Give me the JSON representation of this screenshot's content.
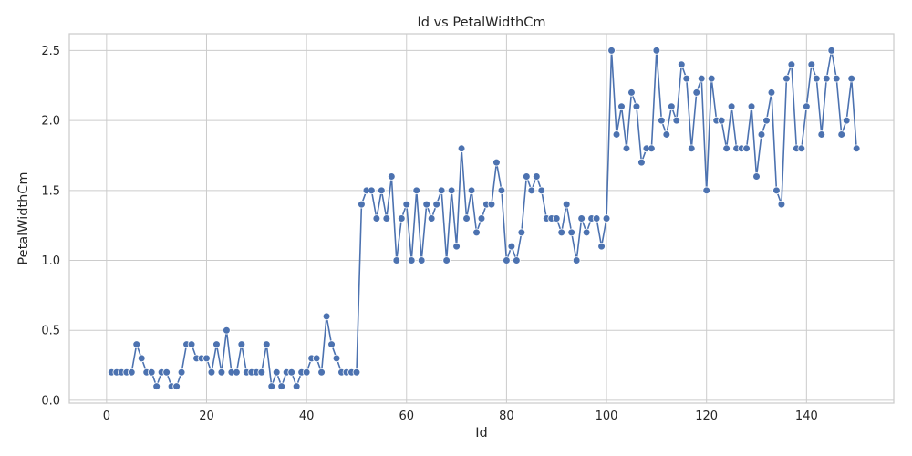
{
  "chart_data": {
    "type": "line",
    "title": "Id vs PetalWidthCm",
    "xlabel": "Id",
    "ylabel": "PetalWidthCm",
    "xlim": [
      -7.45,
      157.45
    ],
    "ylim": [
      -0.02,
      2.62
    ],
    "xticks": [
      0,
      20,
      40,
      60,
      80,
      100,
      120,
      140
    ],
    "yticks": [
      0.0,
      0.5,
      1.0,
      1.5,
      2.0,
      2.5
    ],
    "ytick_labels": [
      "0.0",
      "0.5",
      "1.0",
      "1.5",
      "2.0",
      "2.5"
    ],
    "grid": true,
    "color": "#4c72b0",
    "series": [
      {
        "x": [
          1,
          2,
          3,
          4,
          5,
          6,
          7,
          8,
          9,
          10,
          11,
          12,
          13,
          14,
          15,
          16,
          17,
          18,
          19,
          20,
          21,
          22,
          23,
          24,
          25,
          26,
          27,
          28,
          29,
          30,
          31,
          32,
          33,
          34,
          35,
          36,
          37,
          38,
          39,
          40,
          41,
          42,
          43,
          44,
          45,
          46,
          47,
          48,
          49,
          50,
          51,
          52,
          53,
          54,
          55,
          56,
          57,
          58,
          59,
          60,
          61,
          62,
          63,
          64,
          65,
          66,
          67,
          68,
          69,
          70,
          71,
          72,
          73,
          74,
          75,
          76,
          77,
          78,
          79,
          80,
          81,
          82,
          83,
          84,
          85,
          86,
          87,
          88,
          89,
          90,
          91,
          92,
          93,
          94,
          95,
          96,
          97,
          98,
          99,
          100,
          101,
          102,
          103,
          104,
          105,
          106,
          107,
          108,
          109,
          110,
          111,
          112,
          113,
          114,
          115,
          116,
          117,
          118,
          119,
          120,
          121,
          122,
          123,
          124,
          125,
          126,
          127,
          128,
          129,
          130,
          131,
          132,
          133,
          134,
          135,
          136,
          137,
          138,
          139,
          140,
          141,
          142,
          143,
          144,
          145,
          146,
          147,
          148,
          149,
          150
        ],
        "y": [
          0.2,
          0.2,
          0.2,
          0.2,
          0.2,
          0.4,
          0.3,
          0.2,
          0.2,
          0.1,
          0.2,
          0.2,
          0.1,
          0.1,
          0.2,
          0.4,
          0.4,
          0.3,
          0.3,
          0.3,
          0.2,
          0.4,
          0.2,
          0.5,
          0.2,
          0.2,
          0.4,
          0.2,
          0.2,
          0.2,
          0.2,
          0.4,
          0.1,
          0.2,
          0.1,
          0.2,
          0.2,
          0.1,
          0.2,
          0.2,
          0.3,
          0.3,
          0.2,
          0.6,
          0.4,
          0.3,
          0.2,
          0.2,
          0.2,
          0.2,
          1.4,
          1.5,
          1.5,
          1.3,
          1.5,
          1.3,
          1.6,
          1.0,
          1.3,
          1.4,
          1.0,
          1.5,
          1.0,
          1.4,
          1.3,
          1.4,
          1.5,
          1.0,
          1.5,
          1.1,
          1.8,
          1.3,
          1.5,
          1.2,
          1.3,
          1.4,
          1.4,
          1.7,
          1.5,
          1.0,
          1.1,
          1.0,
          1.2,
          1.6,
          1.5,
          1.6,
          1.5,
          1.3,
          1.3,
          1.3,
          1.2,
          1.4,
          1.2,
          1.0,
          1.3,
          1.2,
          1.3,
          1.3,
          1.1,
          1.3,
          2.5,
          1.9,
          2.1,
          1.8,
          2.2,
          2.1,
          1.7,
          1.8,
          1.8,
          2.5,
          2.0,
          1.9,
          2.1,
          2.0,
          2.4,
          2.3,
          1.8,
          2.2,
          2.3,
          1.5,
          2.3,
          2.0,
          2.0,
          1.8,
          2.1,
          1.8,
          1.8,
          1.8,
          2.1,
          1.6,
          1.9,
          2.0,
          2.2,
          1.5,
          1.4,
          2.3,
          2.4,
          1.8,
          1.8,
          2.1,
          2.4,
          2.3,
          1.9,
          2.3,
          2.5,
          2.3,
          1.9,
          2.0,
          2.3,
          1.8
        ]
      }
    ]
  }
}
